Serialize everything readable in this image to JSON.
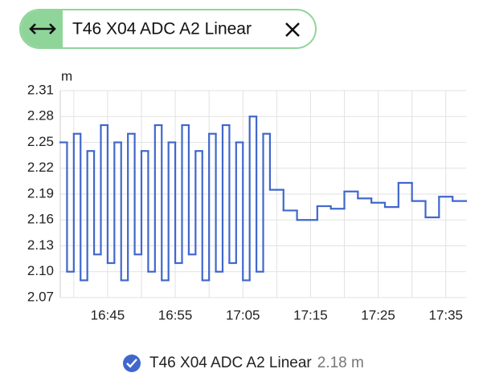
{
  "chart_data": {
    "type": "step-line",
    "ylabel": "m",
    "state_label": "2.18 m",
    "x": [
      "16:38",
      "16:39",
      "16:40",
      "16:41",
      "16:42",
      "16:43",
      "16:44",
      "16:45",
      "16:46",
      "16:47",
      "16:48",
      "16:49",
      "16:50",
      "16:51",
      "16:52",
      "16:53",
      "16:54",
      "16:55",
      "16:56",
      "16:57",
      "16:58",
      "16:59",
      "17:00",
      "17:01",
      "17:02",
      "17:03",
      "17:04",
      "17:05",
      "17:06",
      "17:07",
      "17:08",
      "17:09",
      "17:11",
      "17:13",
      "17:16",
      "17:18",
      "17:20",
      "17:22",
      "17:24",
      "17:26",
      "17:28",
      "17:30",
      "17:32",
      "17:34",
      "17:36"
    ],
    "series": [
      {
        "name": "T46 X04 ADC A2 Linear",
        "color": "#4067cc",
        "values": [
          2.25,
          2.1,
          2.26,
          2.09,
          2.24,
          2.12,
          2.27,
          2.11,
          2.25,
          2.09,
          2.26,
          2.12,
          2.24,
          2.1,
          2.27,
          2.09,
          2.25,
          2.11,
          2.27,
          2.12,
          2.24,
          2.09,
          2.26,
          2.1,
          2.27,
          2.11,
          2.25,
          2.09,
          2.28,
          2.1,
          2.26,
          2.195,
          2.171,
          2.16,
          2.176,
          2.173,
          2.193,
          2.185,
          2.18,
          2.175,
          2.203,
          2.182,
          2.163,
          2.187,
          2.182
        ]
      }
    ],
    "xlim": [
      "16:38",
      "17:38"
    ],
    "xticks": [
      "16:45",
      "16:55",
      "17:05",
      "17:15",
      "17:25",
      "17:35"
    ],
    "xgrid": [
      "16:40",
      "16:45",
      "16:50",
      "16:55",
      "17:00",
      "17:05",
      "17:10",
      "17:15",
      "17:20",
      "17:25",
      "17:30",
      "17:35"
    ],
    "ylim": [
      2.07,
      2.31
    ],
    "yticks": [
      2.07,
      {
        "value": 2.1,
        "label": "2.10"
      },
      2.13,
      2.16,
      2.19,
      2.22,
      2.25,
      2.28,
      2.31
    ],
    "grid": true
  }
}
